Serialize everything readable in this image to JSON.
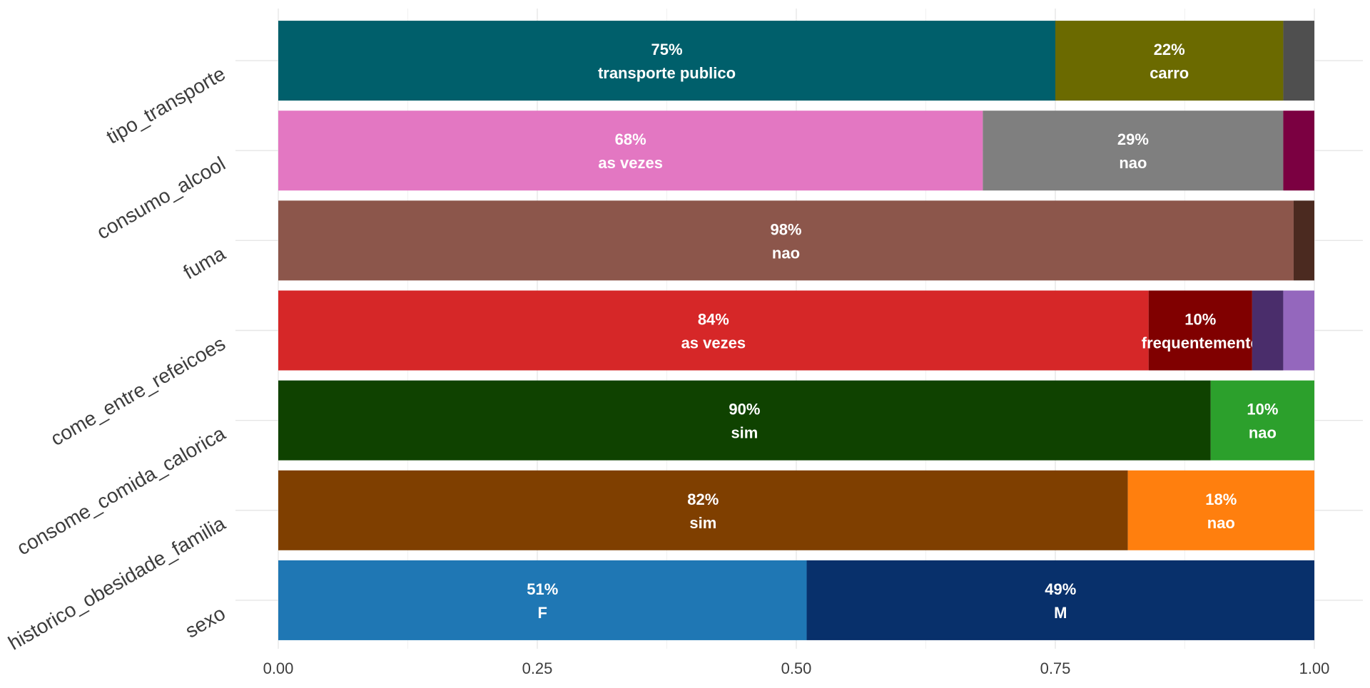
{
  "chart_data": {
    "type": "bar",
    "orientation": "horizontal",
    "stacked": true,
    "normalized": true,
    "title": "",
    "xlabel": "",
    "ylabel": "",
    "xlim": [
      0,
      1
    ],
    "x_ticks": [
      "0.00",
      "0.25",
      "0.50",
      "0.75",
      "1.00"
    ],
    "x_tick_values": [
      0,
      0.25,
      0.5,
      0.75,
      1
    ],
    "grid": true,
    "legend": "none",
    "categories": [
      "tipo_transporte",
      "consumo_alcool",
      "fuma",
      "come_entre_refeicoes",
      "consome_comida_calorica",
      "historico_obesidade_familia",
      "sexo"
    ],
    "rows": [
      {
        "category": "tipo_transporte",
        "segments": [
          {
            "value": 0.75,
            "color": "#005f6b",
            "pct": "75%",
            "level": "transporte publico"
          },
          {
            "value": 0.22,
            "color": "#6b6a00",
            "pct": "22%",
            "level": "carro"
          },
          {
            "value": 0.03,
            "color": "#4f4f4f",
            "pct": "",
            "level": ""
          }
        ]
      },
      {
        "category": "consumo_alcool",
        "segments": [
          {
            "value": 0.68,
            "color": "#e377c2",
            "pct": "68%",
            "level": "as vezes"
          },
          {
            "value": 0.29,
            "color": "#7f7f7f",
            "pct": "29%",
            "level": "nao"
          },
          {
            "value": 0.03,
            "color": "#7b0041",
            "pct": "",
            "level": ""
          }
        ]
      },
      {
        "category": "fuma",
        "segments": [
          {
            "value": 0.98,
            "color": "#8c564b",
            "pct": "98%",
            "level": "nao"
          },
          {
            "value": 0.02,
            "color": "#4b2a20",
            "pct": "",
            "level": ""
          }
        ]
      },
      {
        "category": "come_entre_refeicoes",
        "segments": [
          {
            "value": 0.84,
            "color": "#d62728",
            "pct": "84%",
            "level": "as vezes"
          },
          {
            "value": 0.1,
            "color": "#800000",
            "pct": "10%",
            "level": "frequentemente"
          },
          {
            "value": 0.03,
            "color": "#4a2d6b",
            "pct": "",
            "level": ""
          },
          {
            "value": 0.03,
            "color": "#9467bd",
            "pct": "",
            "level": ""
          }
        ]
      },
      {
        "category": "consome_comida_calorica",
        "segments": [
          {
            "value": 0.9,
            "color": "#0f4200",
            "pct": "90%",
            "level": "sim"
          },
          {
            "value": 0.1,
            "color": "#2ca02c",
            "pct": "10%",
            "level": "nao"
          }
        ]
      },
      {
        "category": "historico_obesidade_familia",
        "segments": [
          {
            "value": 0.82,
            "color": "#7f3f00",
            "pct": "82%",
            "level": "sim"
          },
          {
            "value": 0.18,
            "color": "#ff7f0e",
            "pct": "18%",
            "level": "nao"
          }
        ]
      },
      {
        "category": "sexo",
        "segments": [
          {
            "value": 0.51,
            "color": "#1f77b4",
            "pct": "51%",
            "level": "F"
          },
          {
            "value": 0.49,
            "color": "#08306b",
            "pct": "49%",
            "level": "M"
          }
        ]
      }
    ]
  }
}
